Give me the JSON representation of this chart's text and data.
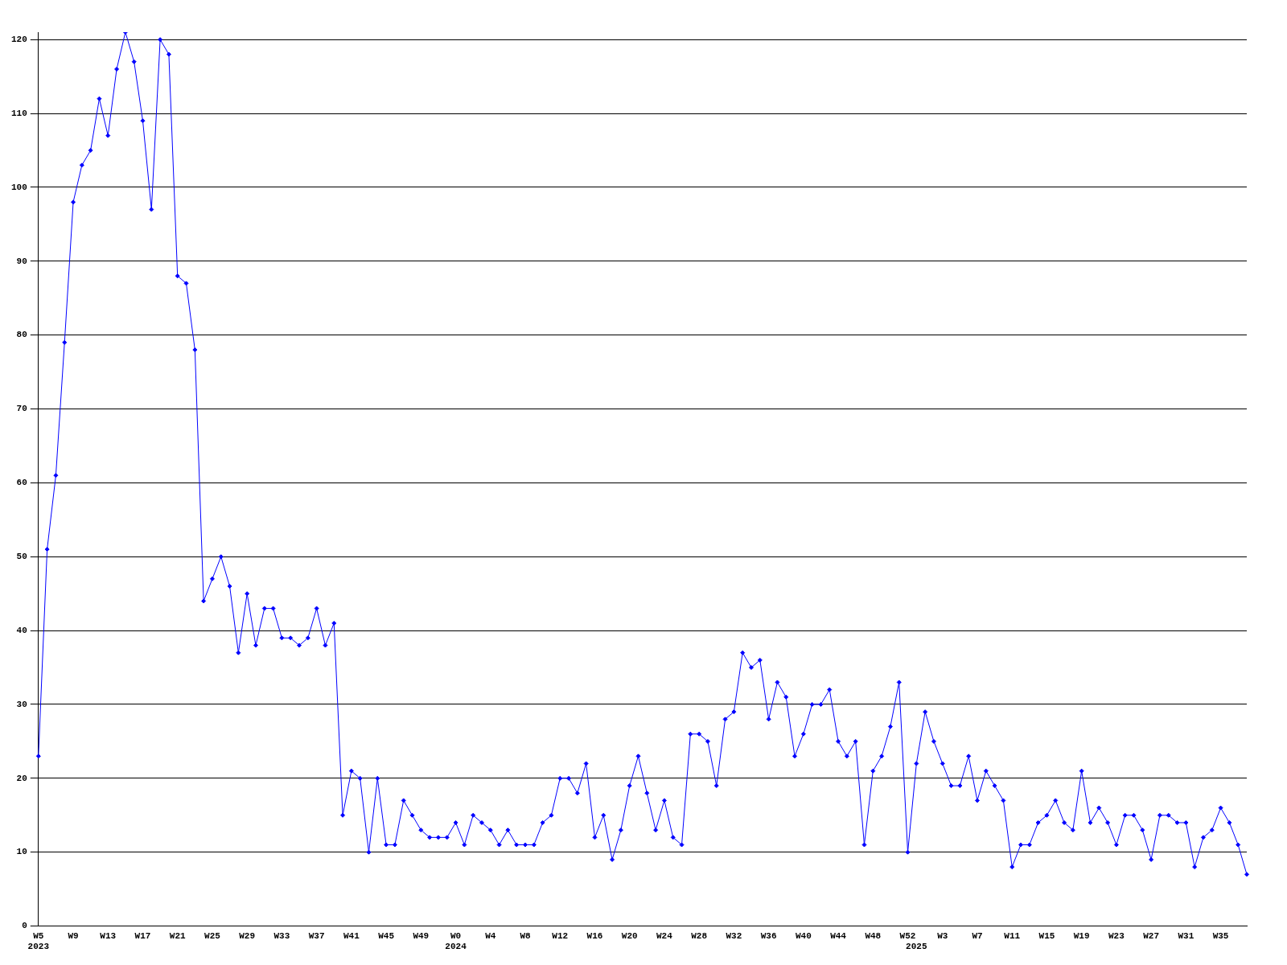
{
  "chart_data": {
    "type": "line",
    "categories": [
      "W5\n2023",
      null,
      null,
      null,
      "W9",
      null,
      null,
      null,
      "W13",
      null,
      null,
      null,
      "W17",
      null,
      null,
      null,
      "W21",
      null,
      null,
      null,
      "W25",
      null,
      null,
      null,
      "W29",
      null,
      null,
      null,
      "W33",
      null,
      null,
      null,
      "W37",
      null,
      null,
      null,
      "W41",
      null,
      null,
      null,
      "W45",
      null,
      null,
      null,
      "W49",
      null,
      null,
      null,
      "W0\n2024",
      null,
      null,
      null,
      "W4",
      null,
      null,
      null,
      "W8",
      null,
      null,
      null,
      "W12",
      null,
      null,
      null,
      "W16",
      null,
      null,
      null,
      "W20",
      null,
      null,
      null,
      "W24",
      null,
      null,
      null,
      "W28",
      null,
      null,
      null,
      "W32",
      null,
      null,
      null,
      "W36",
      null,
      null,
      null,
      "W40",
      null,
      null,
      null,
      "W44",
      null,
      null,
      null,
      "W48",
      null,
      null,
      null,
      "W52",
      "\n2025",
      null,
      null,
      "W3",
      null,
      null,
      null,
      "W7",
      null,
      null,
      null,
      "W11",
      null,
      null,
      null,
      "W15",
      null,
      null,
      null,
      "W19",
      null,
      null,
      null,
      "W23",
      null,
      null,
      null,
      "W27",
      null,
      null,
      null,
      "W31",
      null,
      null,
      null,
      "W35",
      null,
      null,
      null
    ],
    "series": [
      {
        "color": "#0000ff",
        "values": [
          23,
          51,
          61,
          79,
          98,
          103,
          105,
          112,
          107,
          116,
          121,
          117,
          109,
          97,
          120,
          118,
          88,
          87,
          78,
          44,
          47,
          50,
          46,
          37,
          45,
          38,
          43,
          43,
          39,
          39,
          38,
          39,
          43,
          38,
          41,
          15,
          21,
          20,
          10,
          20,
          11,
          11,
          17,
          15,
          13,
          12,
          12,
          12,
          14,
          11,
          15,
          14,
          13,
          11,
          13,
          11,
          11,
          11,
          14,
          15,
          20,
          20,
          18,
          22,
          12,
          15,
          9,
          13,
          19,
          23,
          18,
          13,
          17,
          12,
          11,
          26,
          26,
          25,
          19,
          28,
          29,
          37,
          35,
          36,
          28,
          33,
          31,
          23,
          26,
          30,
          30,
          32,
          25,
          23,
          25,
          11,
          21,
          23,
          27,
          33,
          10,
          22,
          29,
          25,
          22,
          19,
          19,
          23,
          17,
          21,
          19,
          17,
          8,
          11,
          11,
          14,
          15,
          17,
          14,
          13,
          21,
          14,
          16,
          14,
          11,
          15,
          15,
          13,
          9,
          15,
          15,
          14,
          14,
          8,
          12,
          13,
          16,
          14,
          11,
          7
        ]
      }
    ],
    "ylim": [
      0,
      121
    ],
    "yticks": [
      0,
      10,
      20,
      30,
      40,
      50,
      60,
      70,
      80,
      90,
      100,
      110,
      120
    ],
    "grid": "y",
    "legend": false,
    "marker": "diamond",
    "line_style": "solid"
  }
}
